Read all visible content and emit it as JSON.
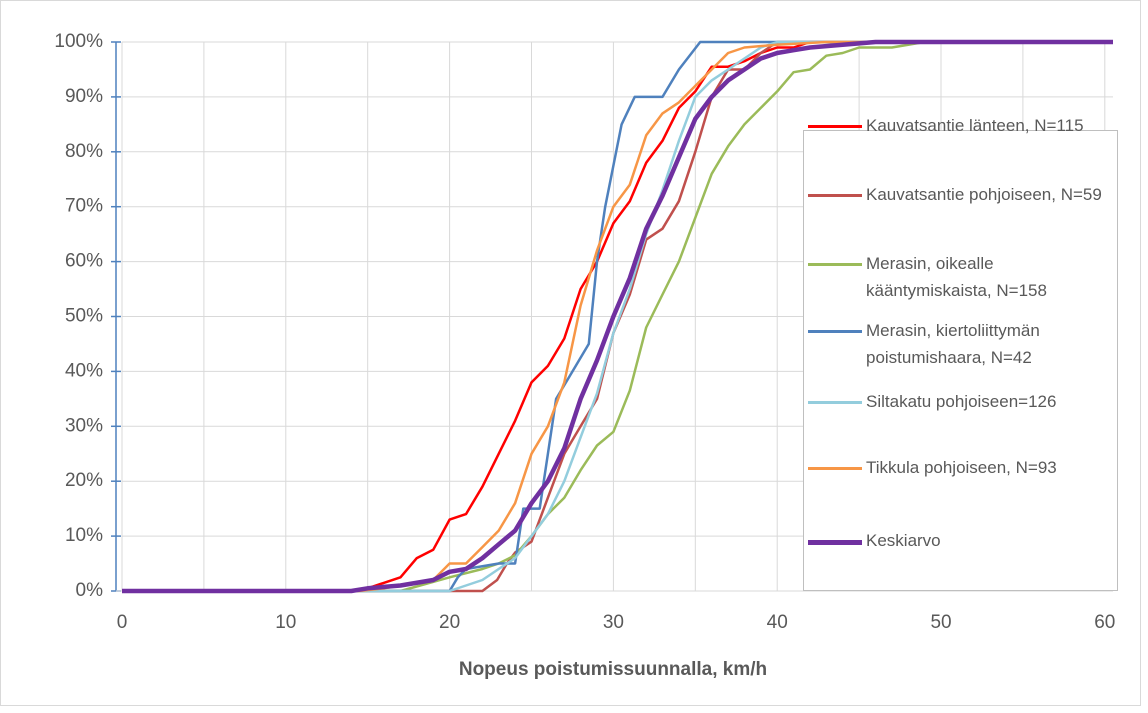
{
  "chart_data": {
    "type": "line",
    "xlabel": "Nopeus poistumissuunnalla, km/h",
    "xlim": [
      0,
      60.5
    ],
    "xticks": [
      0,
      10,
      20,
      30,
      40,
      50,
      60
    ],
    "ylim": [
      0,
      100
    ],
    "yticks": [
      {
        "value": 0,
        "label": "0%"
      },
      {
        "value": 10,
        "label": "10%"
      },
      {
        "value": 20,
        "label": "20%"
      },
      {
        "value": 30,
        "label": "30%"
      },
      {
        "value": 40,
        "label": "40%"
      },
      {
        "value": 50,
        "label": "50%"
      },
      {
        "value": 60,
        "label": "60%"
      },
      {
        "value": 70,
        "label": "70%"
      },
      {
        "value": 80,
        "label": "80%"
      },
      {
        "value": 90,
        "label": "90%"
      },
      {
        "value": 100,
        "label": "100%"
      }
    ],
    "grid": true,
    "legend": "right",
    "series": [
      {
        "name": "Kauvatsantie länteen, N=115",
        "color": "#ff0000",
        "x": [
          0,
          14.5,
          16,
          17,
          18,
          19,
          20,
          21,
          22,
          23,
          24,
          25,
          26,
          27,
          28,
          29,
          30,
          31,
          32,
          33,
          34,
          35,
          36,
          37,
          38,
          39,
          40,
          41,
          42,
          60.5
        ],
        "values": [
          0,
          0,
          1.5,
          2.5,
          6,
          7.5,
          13,
          14,
          19,
          25,
          31,
          38,
          41,
          46,
          55,
          60,
          67,
          71,
          78,
          82,
          88,
          91,
          95.5,
          95.5,
          96.5,
          98,
          99,
          99,
          100,
          100
        ]
      },
      {
        "name": "Kauvatsantie pohjoiseen, N=59",
        "color": "#c0504d",
        "x": [
          0,
          22,
          22.9,
          23.5,
          24,
          25,
          26,
          27,
          28,
          29,
          30,
          31,
          32,
          33,
          34,
          35,
          36,
          37,
          38,
          39,
          40,
          60.5
        ],
        "values": [
          0,
          0,
          2,
          5,
          7,
          9,
          17,
          25,
          30,
          35,
          47,
          54,
          64,
          66,
          71,
          80,
          90,
          95,
          95,
          98,
          100,
          100
        ]
      },
      {
        "name": "Merasin, oikealle kääntymiskaista, N=158",
        "color": "#9bbb59",
        "x": [
          0,
          17,
          20,
          22,
          23,
          24,
          25,
          26,
          27,
          28,
          29,
          30,
          31,
          32,
          33,
          34,
          35,
          36,
          37,
          38,
          39,
          40,
          41,
          42,
          43,
          44,
          45,
          47,
          49,
          60.5
        ],
        "values": [
          0,
          0,
          2.5,
          4,
          5,
          6.5,
          10,
          14,
          17,
          22,
          26.5,
          29,
          36.5,
          48,
          54,
          60,
          68,
          76,
          81,
          85,
          88,
          91,
          94.5,
          95,
          97.5,
          98,
          99,
          99,
          100,
          100
        ]
      },
      {
        "name": "Merasin, kiertoliittymän poistumishaara, N=42",
        "color": "#4f81bd",
        "x": [
          0,
          20,
          20.5,
          21,
          23,
          24,
          24.5,
          25.5,
          26,
          26.5,
          27.5,
          28.5,
          29,
          29.5,
          30.5,
          31.3,
          33,
          34,
          35.3,
          60.5
        ],
        "values": [
          0,
          0,
          2.5,
          4,
          5,
          5,
          15,
          15,
          25,
          35,
          40,
          45,
          60,
          70,
          85,
          90,
          90,
          95,
          100,
          100
        ]
      },
      {
        "name": "Siltakatu pohjoiseen=126",
        "color": "#93cddd",
        "x": [
          0,
          20,
          21,
          22,
          23,
          24,
          25,
          26,
          27,
          28,
          29,
          30,
          31,
          32,
          33,
          34,
          35,
          36,
          37,
          38,
          39,
          40,
          60.5
        ],
        "values": [
          0,
          0,
          1,
          2,
          4,
          6,
          10,
          14,
          20,
          28,
          36,
          47,
          55,
          65,
          73,
          82,
          90,
          93,
          95,
          97,
          99,
          100,
          100
        ]
      },
      {
        "name": "Tikkula pohjoiseen, N=93",
        "color": "#f79646",
        "x": [
          0,
          14.5,
          16,
          18,
          19,
          20,
          21,
          22,
          23,
          24,
          25,
          26,
          27,
          28,
          29,
          30,
          31,
          32,
          33,
          34,
          35,
          36,
          37,
          38,
          40,
          43,
          60.5
        ],
        "values": [
          0,
          0,
          0.5,
          1.5,
          2,
          5,
          5,
          8,
          11,
          16,
          25,
          30,
          38,
          52,
          62,
          70,
          74,
          83,
          87,
          89,
          92,
          95,
          98,
          99,
          99.5,
          100,
          100
        ]
      },
      {
        "name": "Keskiarvo",
        "color": "#7030a0",
        "x": [
          0,
          14,
          15,
          17,
          19,
          20,
          21,
          22,
          23,
          24,
          25,
          26,
          27,
          28,
          29,
          30,
          31,
          32,
          33,
          34,
          35,
          36,
          37,
          38,
          39,
          40,
          41,
          42,
          44,
          46,
          60.5
        ],
        "values": [
          0,
          0,
          0.5,
          1,
          2,
          3.5,
          4,
          6,
          8.5,
          11,
          16,
          20,
          26,
          35,
          42,
          50,
          57,
          66,
          72,
          79,
          86,
          90,
          93,
          95,
          97,
          98,
          98.5,
          99,
          99.5,
          100,
          100
        ]
      }
    ]
  }
}
